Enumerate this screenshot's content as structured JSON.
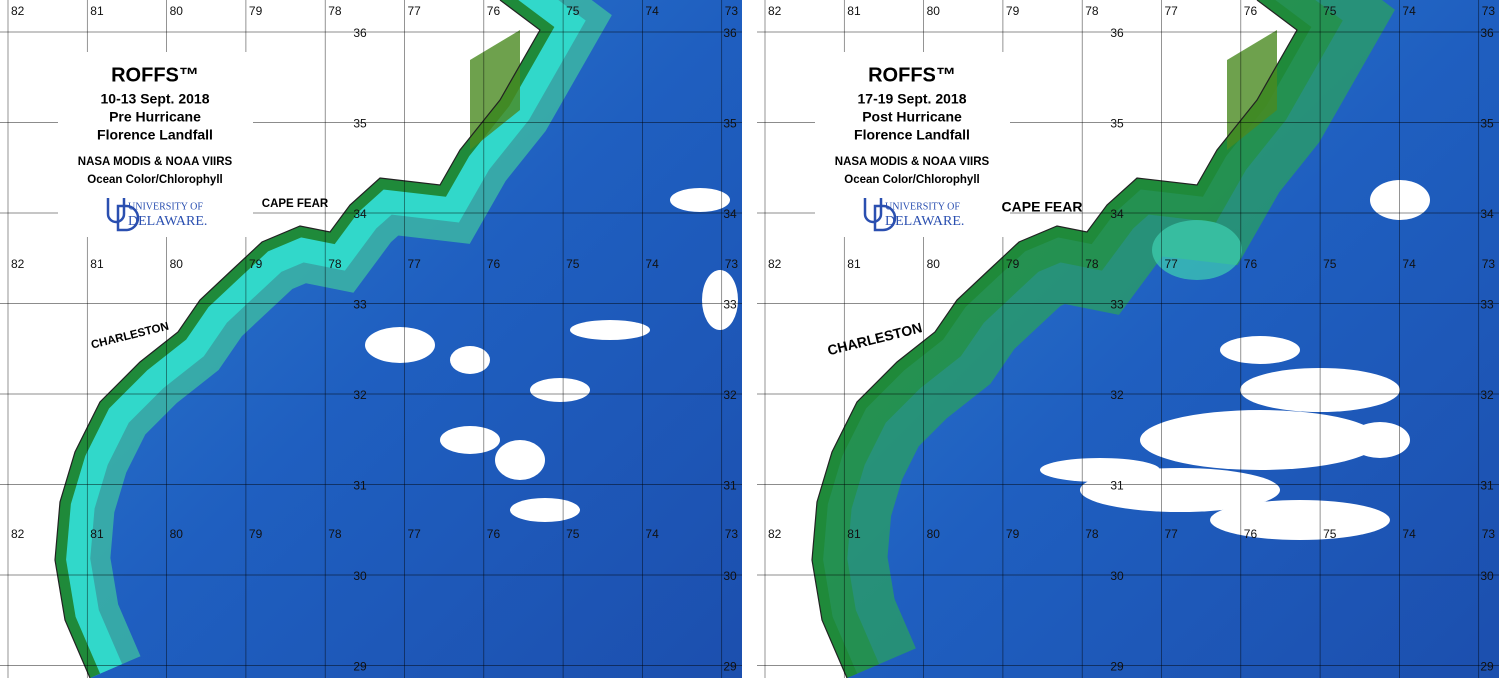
{
  "panels": [
    {
      "title": "ROFFS™",
      "dates": "10-13 Sept. 2018",
      "phase": "Pre Hurricane",
      "event": "Florence Landfall",
      "source": "NASA MODIS & NOAA VIIRS",
      "product": "Ocean Color/Chlorophyll",
      "logo_top": "UNIVERSITY OF",
      "logo_bottom": "DELAWARE.",
      "places": [
        "CAPE FEAR",
        "CHARLESTON"
      ]
    },
    {
      "title": "ROFFS™",
      "dates": "17-19 Sept. 2018",
      "phase": "Post Hurricane",
      "event": "Florence Landfall",
      "source": "NASA MODIS & NOAA VIIRS",
      "product": "Ocean Color/Chlorophyll",
      "logo_top": "UNIVERSITY OF",
      "logo_bottom": "DELAWARE.",
      "places": [
        "CAPE FEAR",
        "CHARLESTON"
      ]
    }
  ],
  "longitudes": [
    "82",
    "81",
    "80",
    "79",
    "78",
    "77",
    "76",
    "75",
    "74",
    "73"
  ],
  "latitudes": [
    "36",
    "35",
    "34",
    "33",
    "32",
    "31",
    "30",
    "29"
  ]
}
